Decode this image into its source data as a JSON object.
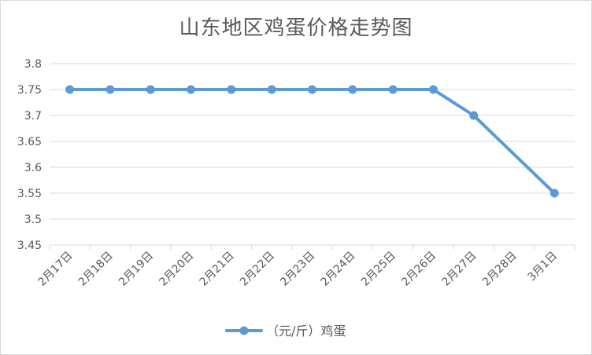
{
  "chart_data": {
    "type": "line",
    "title": "山东地区鸡蛋价格走势图",
    "xlabel": "",
    "ylabel": "",
    "categories": [
      "2月17日",
      "2月18日",
      "2月19日",
      "2月20日",
      "2月21日",
      "2月22日",
      "2月23日",
      "2月24日",
      "2月25日",
      "2月26日",
      "2月27日",
      "2月28日",
      "3月1日"
    ],
    "series": [
      {
        "name": "（元/斤）鸡蛋",
        "values": [
          3.75,
          3.75,
          3.75,
          3.75,
          3.75,
          3.75,
          3.75,
          3.75,
          3.75,
          3.75,
          3.7,
          null,
          3.55
        ],
        "color": "#5b9bd5"
      }
    ],
    "ylim": [
      3.45,
      3.8
    ],
    "yticks": [
      "3.45",
      "3.5",
      "3.55",
      "3.6",
      "3.65",
      "3.7",
      "3.75",
      "3.8"
    ],
    "grid": true,
    "legend_position": "bottom",
    "connect_gaps": true
  }
}
